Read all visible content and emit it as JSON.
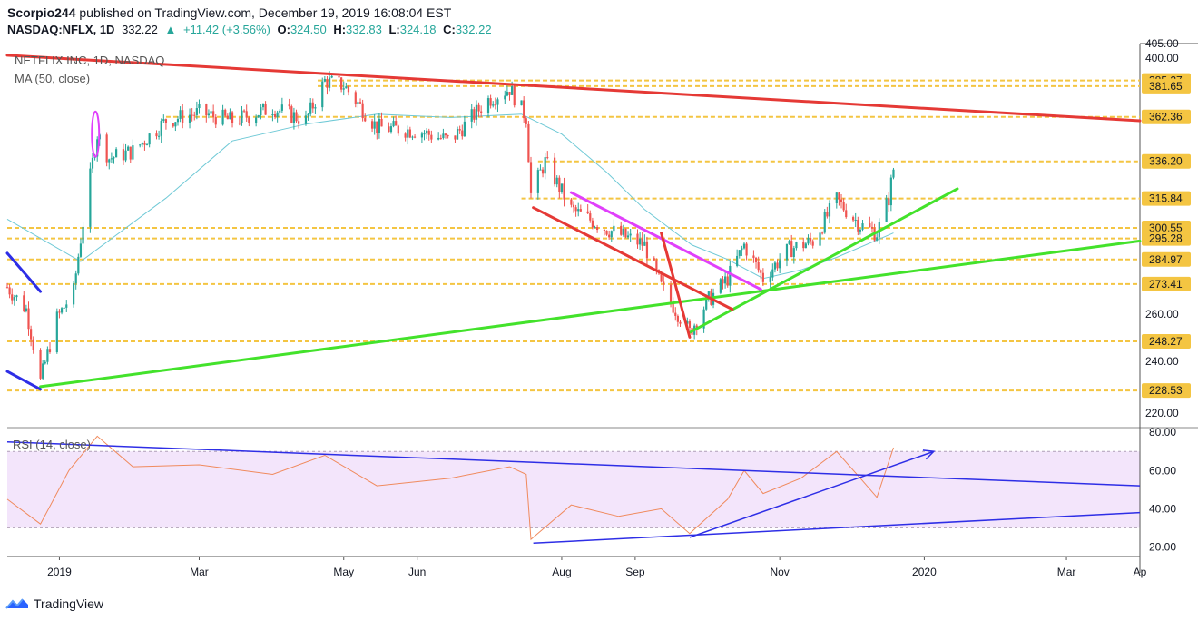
{
  "header": {
    "publish_user": "Scorpio244",
    "publish_text": "published on TradingView.com, December 19, 2019 16:08:04 EST",
    "symbol": "NASDAQ:NFLX, 1D",
    "last": "332.22",
    "change": "+11.42 (+3.56%)",
    "open_label": "O:",
    "open": "324.50",
    "high_label": "H:",
    "high": "332.83",
    "low_label": "L:",
    "low": "324.18",
    "close_label": "C:",
    "close": "332.22"
  },
  "footer": {
    "brand": "TradingView"
  },
  "colors": {
    "up": "#26a69a",
    "down": "#ef5350",
    "price_text": "#131722",
    "level": "#f4c542",
    "red": "#e53935",
    "green": "#43e22b",
    "magenta": "#e040fb",
    "blue": "#2e2ee6",
    "ma": "#6fc9d6",
    "rsi": "#f08a5d",
    "rsi_band": "#f3e5fb"
  },
  "chart_data": [
    {
      "type": "candlestick",
      "title": "NETFLIX INC, 1D, NASDAQ",
      "subtitle": "MA (50, close)",
      "y_scale": "log",
      "ylim": [
        215,
        410
      ],
      "xlim": [
        "2018-12-10",
        "2020-04-01"
      ],
      "x_ticks": [
        {
          "date": "2019-01-01",
          "label": "2019"
        },
        {
          "date": "2019-03-01",
          "label": "Mar"
        },
        {
          "date": "2019-05-01",
          "label": "May"
        },
        {
          "date": "2019-06-01",
          "label": "Jun"
        },
        {
          "date": "2019-08-01",
          "label": "Aug"
        },
        {
          "date": "2019-09-01",
          "label": "Sep"
        },
        {
          "date": "2019-11-01",
          "label": "Nov"
        },
        {
          "date": "2020-01-01",
          "label": "2020"
        },
        {
          "date": "2020-03-01",
          "label": "Mar"
        },
        {
          "date": "2020-04-01",
          "label": "Ap"
        }
      ],
      "y_ticks": [
        220,
        240,
        260,
        280,
        300,
        320,
        340,
        360,
        380,
        400
      ],
      "y_tick_labels": [
        "220.00",
        "240.00",
        "260.00",
        "",
        "",
        "",
        "",
        "",
        "",
        "400.00"
      ],
      "top_tick": "405.00",
      "levels": [
        385.27,
        381.65,
        362.36,
        336.2,
        315.84,
        300.55,
        295.28,
        284.97,
        273.41,
        248.27,
        228.53
      ],
      "level_labels": [
        "385.27",
        "381.65",
        "362.36",
        "336.20",
        "315.84",
        "300.55",
        "295.28",
        "284.97",
        "273.41",
        "248.27",
        "228.53"
      ],
      "price_path": [
        [
          "2018-12-10",
          272
        ],
        [
          "2018-12-18",
          262
        ],
        [
          "2018-12-24",
          232
        ],
        [
          "2018-12-31",
          258
        ],
        [
          "2019-01-07",
          270
        ],
        [
          "2019-01-10",
          295
        ],
        [
          "2019-01-17",
          352
        ],
        [
          "2019-01-22",
          338
        ],
        [
          "2019-02-01",
          342
        ],
        [
          "2019-02-15",
          360
        ],
        [
          "2019-03-01",
          365
        ],
        [
          "2019-03-15",
          360
        ],
        [
          "2019-04-01",
          368
        ],
        [
          "2019-04-15",
          360
        ],
        [
          "2019-04-23",
          385
        ],
        [
          "2019-05-01",
          382
        ],
        [
          "2019-05-15",
          356
        ],
        [
          "2019-06-01",
          354
        ],
        [
          "2019-06-15",
          348
        ],
        [
          "2019-07-01",
          373
        ],
        [
          "2019-07-10",
          380
        ],
        [
          "2019-07-17",
          362
        ],
        [
          "2019-07-19",
          318
        ],
        [
          "2019-07-25",
          336
        ],
        [
          "2019-08-05",
          310
        ],
        [
          "2019-08-20",
          300
        ],
        [
          "2019-09-05",
          292
        ],
        [
          "2019-09-12",
          272
        ],
        [
          "2019-09-24",
          252
        ],
        [
          "2019-10-01",
          265
        ],
        [
          "2019-10-10",
          276
        ],
        [
          "2019-10-17",
          292
        ],
        [
          "2019-10-25",
          276
        ],
        [
          "2019-11-05",
          290
        ],
        [
          "2019-11-15",
          294
        ],
        [
          "2019-11-25",
          315
        ],
        [
          "2019-12-05",
          302
        ],
        [
          "2019-12-12",
          298
        ],
        [
          "2019-12-17",
          316
        ],
        [
          "2019-12-19",
          332
        ]
      ],
      "ma50_path": [
        [
          "2018-12-10",
          305
        ],
        [
          "2019-01-10",
          284
        ],
        [
          "2019-02-15",
          316
        ],
        [
          "2019-03-15",
          348
        ],
        [
          "2019-04-15",
          358
        ],
        [
          "2019-05-15",
          364
        ],
        [
          "2019-06-15",
          362
        ],
        [
          "2019-07-15",
          364
        ],
        [
          "2019-08-01",
          352
        ],
        [
          "2019-08-20",
          330
        ],
        [
          "2019-09-05",
          310
        ],
        [
          "2019-09-25",
          292
        ],
        [
          "2019-10-10",
          285
        ],
        [
          "2019-10-25",
          276
        ],
        [
          "2019-11-10",
          280
        ],
        [
          "2019-11-25",
          286
        ],
        [
          "2019-12-19",
          298
        ]
      ],
      "trendlines": [
        {
          "color": "red",
          "from": [
            "2018-12-10",
            402
          ],
          "to": [
            "2020-04-01",
            360
          ]
        },
        {
          "color": "green",
          "from": [
            "2018-12-24",
            230
          ],
          "to": [
            "2020-04-01",
            294
          ]
        },
        {
          "color": "green",
          "from": [
            "2019-09-24",
            252
          ],
          "to": [
            "2020-01-15",
            321
          ]
        },
        {
          "color": "red",
          "from": [
            "2019-07-20",
            311
          ],
          "to": [
            "2019-10-12",
            262
          ]
        },
        {
          "color": "magenta",
          "from": [
            "2019-08-05",
            319
          ],
          "to": [
            "2019-10-24",
            271
          ]
        },
        {
          "color": "red",
          "from": [
            "2019-09-12",
            298
          ],
          "to": [
            "2019-09-24",
            250
          ]
        },
        {
          "color": "blue",
          "from": [
            "2018-12-10",
            288
          ],
          "to": [
            "2018-12-24",
            270
          ]
        },
        {
          "color": "blue",
          "from": [
            "2018-12-10",
            236
          ],
          "to": [
            "2018-12-24",
            229
          ]
        }
      ]
    },
    {
      "type": "line",
      "title": "RSI (14, close)",
      "ylim": [
        15,
        82
      ],
      "y_ticks": [
        20,
        40,
        60,
        80
      ],
      "y_tick_labels": [
        "20.00",
        "40.00",
        "60.00",
        "80.00"
      ],
      "band": [
        30,
        70
      ],
      "rsi_path": [
        [
          "2018-12-10",
          45
        ],
        [
          "2018-12-24",
          32
        ],
        [
          "2019-01-05",
          60
        ],
        [
          "2019-01-17",
          78
        ],
        [
          "2019-02-01",
          62
        ],
        [
          "2019-03-01",
          63
        ],
        [
          "2019-04-01",
          58
        ],
        [
          "2019-04-23",
          68
        ],
        [
          "2019-05-15",
          52
        ],
        [
          "2019-06-15",
          56
        ],
        [
          "2019-07-10",
          62
        ],
        [
          "2019-07-17",
          58
        ],
        [
          "2019-07-19",
          24
        ],
        [
          "2019-08-05",
          42
        ],
        [
          "2019-08-25",
          36
        ],
        [
          "2019-09-12",
          40
        ],
        [
          "2019-09-24",
          27
        ],
        [
          "2019-10-10",
          45
        ],
        [
          "2019-10-17",
          60
        ],
        [
          "2019-10-25",
          48
        ],
        [
          "2019-11-10",
          56
        ],
        [
          "2019-11-25",
          70
        ],
        [
          "2019-12-05",
          56
        ],
        [
          "2019-12-12",
          46
        ],
        [
          "2019-12-19",
          72
        ]
      ],
      "trendlines": [
        {
          "color": "blue",
          "from": [
            "2018-12-10",
            75
          ],
          "to": [
            "2020-04-01",
            52
          ]
        },
        {
          "color": "blue",
          "from": [
            "2019-07-20",
            22
          ],
          "to": [
            "2020-04-01",
            38
          ]
        },
        {
          "color": "blue",
          "from": [
            "2019-09-24",
            25
          ],
          "to": [
            "2020-01-05",
            70
          ],
          "arrow": true
        }
      ]
    }
  ]
}
